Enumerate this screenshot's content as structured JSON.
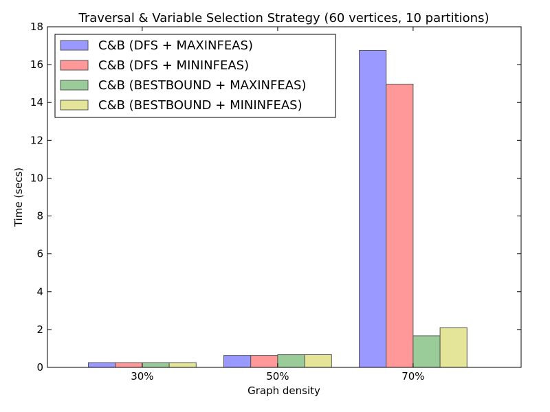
{
  "chart_data": {
    "type": "bar",
    "title": "Traversal & Variable Selection Strategy (60 vertices, 10 partitions)",
    "xlabel": "Graph density",
    "ylabel": "Time (secs)",
    "categories": [
      "30%",
      "50%",
      "70%"
    ],
    "ylim": [
      0,
      18
    ],
    "yticks": [
      "0",
      "2",
      "4",
      "6",
      "8",
      "10",
      "12",
      "14",
      "16",
      "18"
    ],
    "grid": false,
    "legend_position": "top-left",
    "series": [
      {
        "name": "C&B (DFS + MAXINFEAS)",
        "color": "#9999ff",
        "values": [
          0.25,
          0.63,
          16.75
        ]
      },
      {
        "name": "C&B (DFS + MININFEAS)",
        "color": "#ff9999",
        "values": [
          0.25,
          0.63,
          14.97
        ]
      },
      {
        "name": "C&B (BESTBOUND + MAXINFEAS)",
        "color": "#99cc99",
        "values": [
          0.25,
          0.67,
          1.67
        ]
      },
      {
        "name": "C&B (BESTBOUND + MININFEAS)",
        "color": "#e5e599",
        "values": [
          0.25,
          0.67,
          2.1
        ]
      }
    ]
  }
}
